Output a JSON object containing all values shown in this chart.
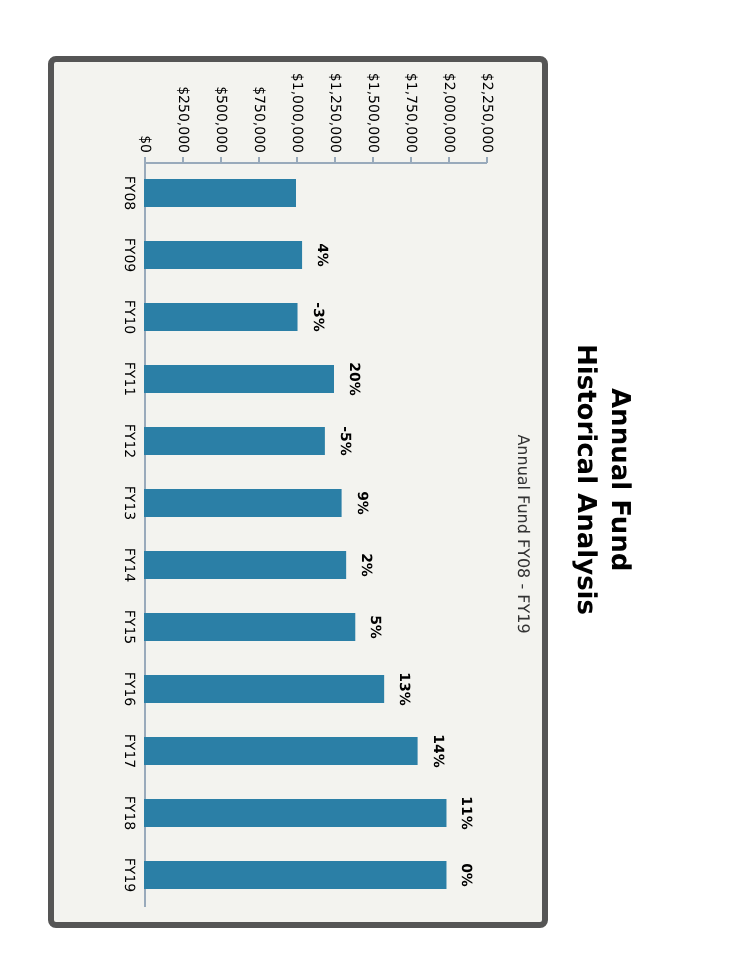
{
  "chart_data": {
    "type": "bar",
    "orientation": "horizontal",
    "title": "Annual Fund\nHistorical Analysis",
    "subtitle": "Annual Fund FY08 - FY19",
    "categories": [
      "FY08",
      "FY09",
      "FY10",
      "FY11",
      "FY12",
      "FY13",
      "FY14",
      "FY15",
      "FY16",
      "FY17",
      "FY18",
      "FY19"
    ],
    "values": [
      1000000,
      1040000,
      1010000,
      1250000,
      1190000,
      1300000,
      1330000,
      1390000,
      1580000,
      1800000,
      1990000,
      1990000
    ],
    "color": "#2b7fa6",
    "xlim": [
      0,
      2250000
    ],
    "xticks": [
      {
        "value": 0,
        "label": "$0"
      },
      {
        "value": 250000,
        "label": "$250,000"
      },
      {
        "value": 500000,
        "label": "$500,000"
      },
      {
        "value": 750000,
        "label": "$750,000"
      },
      {
        "value": 1000000,
        "label": "$1,000,000"
      },
      {
        "value": 1250000,
        "label": "$1,250,000"
      },
      {
        "value": 1500000,
        "label": "$1,500,000"
      },
      {
        "value": 1750000,
        "label": "$1,750,000"
      },
      {
        "value": 2000000,
        "label": "$2,000,000"
      },
      {
        "value": 2250000,
        "label": "$2,250,000"
      }
    ],
    "annotations": [
      {
        "text": "4%",
        "x": 1040000,
        "y": "FY09"
      },
      {
        "text": "-3%",
        "x": 1010000,
        "y": "FY10"
      },
      {
        "text": "20%",
        "x": 1250000,
        "y": "FY11"
      },
      {
        "text": "-5%",
        "x": 1190000,
        "y": "FY12"
      },
      {
        "text": "9%",
        "x": 1300000,
        "y": "FY13"
      },
      {
        "text": "2%",
        "x": 1330000,
        "y": "FY14"
      },
      {
        "text": "5%",
        "x": 1390000,
        "y": "FY15"
      },
      {
        "text": "13%",
        "x": 1580000,
        "y": "FY16"
      },
      {
        "text": "14%",
        "x": 1800000,
        "y": "FY17"
      },
      {
        "text": "11%",
        "x": 1990000,
        "y": "FY18"
      },
      {
        "text": "0%",
        "x": 1990000,
        "y": "FY19"
      }
    ]
  }
}
